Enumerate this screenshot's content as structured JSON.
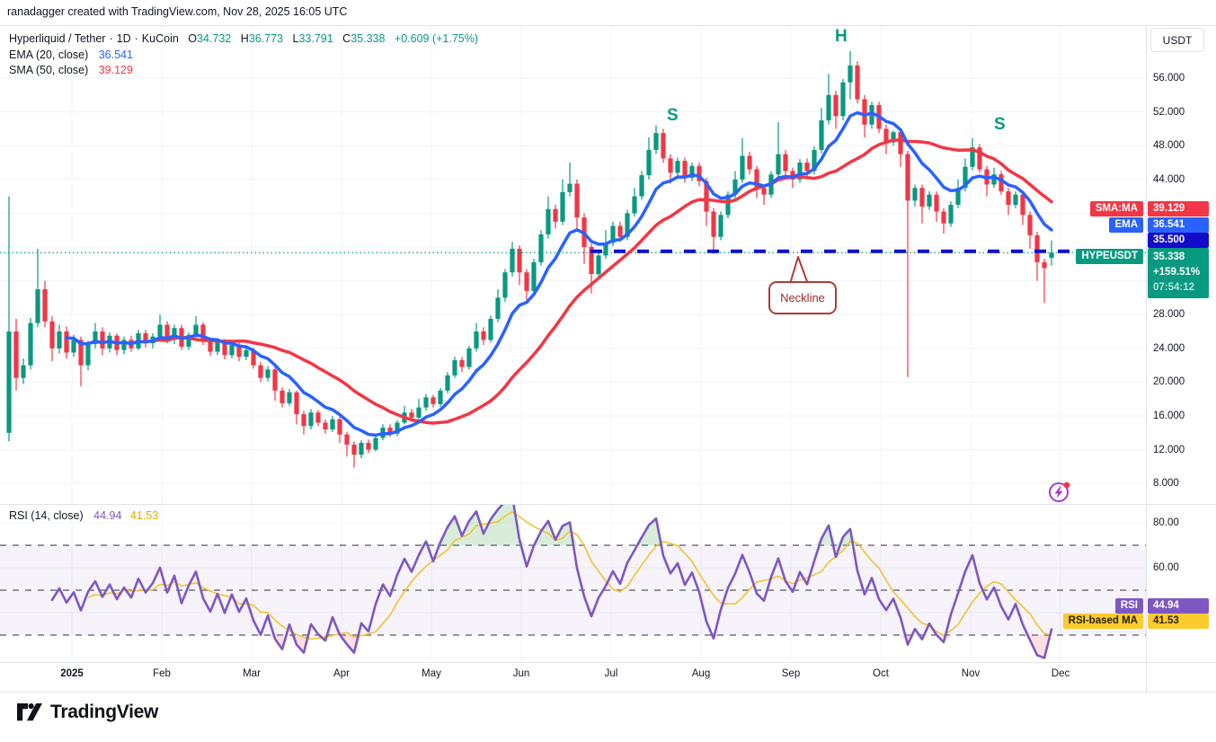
{
  "attribution": "ranadagger created with TradingView.com, Nov 28, 2025 16:05 UTC",
  "legend": {
    "symbol": "Hyperliquid / Tether",
    "sep": "·",
    "timeframe": "1D",
    "exchange": "KuCoin",
    "ohlc": {
      "o_label": "O",
      "open": "34.732",
      "h_label": "H",
      "high": "36.773",
      "l_label": "L",
      "low": "33.791",
      "c_label": "C",
      "close": "35.338",
      "change": "+0.609 (+1.75%)"
    },
    "ema_label": "EMA (20, close)",
    "ema_value": "36.541",
    "sma_label": "SMA (50, close)",
    "sma_value": "39.129"
  },
  "rsi_legend": {
    "label": "RSI (14, close)",
    "rsi_value": "44.94",
    "ma_value": "41.53"
  },
  "price_axis": {
    "currency": "USDT",
    "ticks": [
      {
        "label": "56.000",
        "price": 56
      },
      {
        "label": "52.000",
        "price": 52
      },
      {
        "label": "48.000",
        "price": 48
      },
      {
        "label": "44.000",
        "price": 44
      },
      {
        "label": "28.000",
        "price": 28
      },
      {
        "label": "24.000",
        "price": 24
      },
      {
        "label": "20.000",
        "price": 20
      },
      {
        "label": "16.000",
        "price": 16
      },
      {
        "label": "12.000",
        "price": 12
      },
      {
        "label": "8.000",
        "price": 8
      }
    ]
  },
  "axis_badges": {
    "sma_label": "SMA:MA",
    "sma_value": "39.129",
    "ema_label": "EMA",
    "ema_value": "36.541",
    "neckline_value": "35.500",
    "symbol_label": "HYPEUSDT",
    "last_price": "35.338",
    "change_pct": "+159.51%",
    "countdown": "07:54:12"
  },
  "rsi_axis": {
    "ticks": [
      {
        "label": "80.00",
        "value": 80
      },
      {
        "label": "60.00",
        "value": 60
      }
    ],
    "rsi_label": "RSI",
    "rsi_value": "44.94",
    "ma_label": "RSI-based MA",
    "ma_value": "41.53"
  },
  "annotations": {
    "left_shoulder": "S",
    "head": "H",
    "right_shoulder": "S",
    "neckline_label": "Neckline"
  },
  "time_axis": {
    "labels": [
      "2025",
      "Feb",
      "Mar",
      "Apr",
      "May",
      "Jun",
      "Jul",
      "Aug",
      "Sep",
      "Oct",
      "Nov",
      "Dec"
    ]
  },
  "footer": {
    "logo_text": "TradingView"
  },
  "colors": {
    "up": "#089981",
    "down": "#f23645",
    "ema": "#2962ff",
    "sma": "#f23645",
    "neckline": "#1010cf",
    "current_price": "#089981",
    "rsi_line": "#7e57c2",
    "rsi_ma_line": "#f2c230",
    "grid": "#f0f3fa",
    "band_fill": "rgba(126,87,194,0.07)",
    "overbought_fill": "rgba(76,175,80,0.22)",
    "oversold_fill": "rgba(255,82,82,0.18)",
    "level_dash": "#70737e"
  },
  "chart_data": {
    "type": "candlestick",
    "symbol": "HYPEUSDT",
    "exchange": "KuCoin",
    "timeframe": "1D",
    "x_range": "Jan 2025 - Dec 2025",
    "price_ylim": [
      6.5,
      59.5
    ],
    "grid_prices": [
      8,
      12,
      16,
      20,
      24,
      28,
      32,
      36,
      40,
      44,
      48,
      52,
      56
    ],
    "last_bar": {
      "open": 34.732,
      "high": 36.773,
      "low": 33.791,
      "close": 35.338,
      "change": 0.609,
      "change_pct": 1.75
    },
    "overlays": [
      {
        "name": "EMA",
        "period": 20,
        "last": 36.541
      },
      {
        "name": "SMA",
        "period": 50,
        "last": 39.129
      }
    ],
    "hlines": [
      {
        "price": 35.5,
        "style": "dashed",
        "role": "neckline"
      },
      {
        "price": 35.338,
        "style": "dotted",
        "role": "current-price"
      }
    ],
    "pattern_points": [
      {
        "label": "S",
        "price": 50.4,
        "when": "late Jul"
      },
      {
        "label": "H",
        "price": 59.2,
        "when": "mid Sep"
      },
      {
        "label": "S",
        "price": 48.9,
        "when": "early Nov"
      }
    ],
    "candles_note": "OHLC values estimated from the chart, ~2.3-day resolution, Jan through Nov 28 2025",
    "candles": [
      [
        14,
        42,
        13,
        26
      ],
      [
        26,
        27.5,
        19,
        20.5
      ],
      [
        20.5,
        22.8,
        19.8,
        22
      ],
      [
        22,
        27.6,
        21.5,
        27
      ],
      [
        27,
        35.8,
        26.5,
        31
      ],
      [
        31,
        32,
        26.5,
        27.2
      ],
      [
        27.2,
        27.8,
        22.5,
        24
      ],
      [
        24,
        26.8,
        23.4,
        26
      ],
      [
        26,
        26.6,
        22.8,
        23.5
      ],
      [
        23.5,
        25.6,
        23,
        25
      ],
      [
        25,
        25.4,
        19.5,
        22
      ],
      [
        22,
        24.9,
        21.4,
        24.5
      ],
      [
        24.5,
        27,
        24,
        26
      ],
      [
        26,
        26.5,
        23.2,
        24
      ],
      [
        24,
        25.9,
        23.5,
        25.5
      ],
      [
        25.5,
        25.8,
        23.2,
        23.8
      ],
      [
        23.8,
        25.4,
        23.3,
        25
      ],
      [
        25,
        25.5,
        23.6,
        24
      ],
      [
        24,
        26.2,
        23.8,
        25.8
      ],
      [
        25.8,
        26.2,
        24.1,
        24.6
      ],
      [
        24.6,
        25.8,
        24,
        25.4
      ],
      [
        25.4,
        28,
        25,
        26.8
      ],
      [
        26.8,
        27.2,
        24.6,
        25
      ],
      [
        25,
        26.8,
        24.5,
        26.4
      ],
      [
        26.4,
        26.8,
        23.8,
        24.2
      ],
      [
        24.2,
        25.9,
        23.8,
        25.6
      ],
      [
        25.6,
        27.8,
        25.2,
        26.8
      ],
      [
        26.8,
        27.1,
        24.4,
        24.8
      ],
      [
        24.8,
        25.3,
        23.1,
        23.6
      ],
      [
        23.6,
        25.2,
        23.2,
        24.8
      ],
      [
        24.8,
        25.1,
        22.7,
        23.2
      ],
      [
        23.2,
        24.8,
        22.8,
        24.4
      ],
      [
        24.4,
        24.8,
        22.5,
        23
      ],
      [
        23,
        24.2,
        22.6,
        23.8
      ],
      [
        23.8,
        24.1,
        21.6,
        22
      ],
      [
        22,
        22.4,
        20,
        20.5
      ],
      [
        20.5,
        21.9,
        20.1,
        21.5
      ],
      [
        21.5,
        21.8,
        17.8,
        19
      ],
      [
        19,
        19.4,
        17,
        17.5
      ],
      [
        17.5,
        19.2,
        17.2,
        18.8
      ],
      [
        18.8,
        19,
        15,
        16.2
      ],
      [
        16.2,
        16.6,
        13.8,
        14.8
      ],
      [
        14.8,
        16.8,
        14.4,
        16.4
      ],
      [
        16.4,
        16.7,
        14.8,
        15.2
      ],
      [
        15.2,
        15.6,
        13.9,
        14.4
      ],
      [
        14.4,
        16,
        14.1,
        15.6
      ],
      [
        15.6,
        15.9,
        12.8,
        13.8
      ],
      [
        13.8,
        14.1,
        11.2,
        12.6
      ],
      [
        12.6,
        13,
        9.9,
        11.4
      ],
      [
        11.4,
        13.1,
        11,
        12.8
      ],
      [
        12.8,
        13.2,
        11.6,
        12
      ],
      [
        12,
        13.7,
        11.8,
        13.4
      ],
      [
        13.4,
        15,
        13.1,
        14.6
      ],
      [
        14.6,
        15,
        13.5,
        13.9
      ],
      [
        13.9,
        15.5,
        13.6,
        15.2
      ],
      [
        15.2,
        17.2,
        15,
        16.4
      ],
      [
        16.4,
        16.8,
        15.3,
        15.8
      ],
      [
        15.8,
        18,
        15.5,
        17
      ],
      [
        17,
        18.6,
        16.6,
        18.2
      ],
      [
        18.2,
        18.5,
        17,
        17.4
      ],
      [
        17.4,
        19.3,
        17.1,
        19
      ],
      [
        19,
        21.2,
        18.7,
        20.8
      ],
      [
        20.8,
        23,
        20.5,
        22.6
      ],
      [
        22.6,
        23,
        21.2,
        21.8
      ],
      [
        21.8,
        24.3,
        21.5,
        24
      ],
      [
        24,
        27,
        23.6,
        26
      ],
      [
        26,
        26.5,
        24.4,
        25
      ],
      [
        25,
        27.9,
        24.7,
        27.5
      ],
      [
        27.5,
        31,
        27.1,
        30
      ],
      [
        30,
        33.4,
        29.5,
        33
      ],
      [
        33,
        36.6,
        32.5,
        35.8
      ],
      [
        35.8,
        36.2,
        31.5,
        33
      ],
      [
        33,
        33.4,
        29.5,
        30.8
      ],
      [
        30.8,
        34.6,
        30.4,
        34.2
      ],
      [
        34.2,
        38,
        33.8,
        37.5
      ],
      [
        37.5,
        42,
        37,
        40.5
      ],
      [
        40.5,
        41,
        38.2,
        39
      ],
      [
        39,
        44,
        38.6,
        42.5
      ],
      [
        42.5,
        46,
        42,
        43.5
      ],
      [
        43.5,
        44,
        38,
        39.5
      ],
      [
        39.5,
        40,
        34,
        36
      ],
      [
        36,
        36.4,
        30.5,
        32.8
      ],
      [
        32.8,
        35.4,
        32.2,
        35
      ],
      [
        35,
        38,
        34.6,
        36.5
      ],
      [
        36.5,
        39,
        36.1,
        38.5
      ],
      [
        38.5,
        39,
        36.6,
        37.2
      ],
      [
        37.2,
        40.4,
        36.8,
        40
      ],
      [
        40,
        43,
        39.6,
        42
      ],
      [
        42,
        45,
        41.6,
        44.5
      ],
      [
        44.5,
        49,
        44,
        47.5
      ],
      [
        47.5,
        50.4,
        47,
        49.5
      ],
      [
        49.5,
        50,
        46,
        46.5
      ],
      [
        46.5,
        47,
        43.5,
        44.8
      ],
      [
        44.8,
        46.6,
        44.2,
        46.2
      ],
      [
        46.2,
        46.6,
        43.6,
        44.2
      ],
      [
        44.2,
        46,
        43.8,
        45.6
      ],
      [
        45.6,
        46,
        43.2,
        43.8
      ],
      [
        43.8,
        44.2,
        38.5,
        40.2
      ],
      [
        40.2,
        40.6,
        35.2,
        37.2
      ],
      [
        37.2,
        40.2,
        36.8,
        39.8
      ],
      [
        39.8,
        42.6,
        39.4,
        42.2
      ],
      [
        42.2,
        45,
        41.8,
        44
      ],
      [
        44,
        48.9,
        43.6,
        46.8
      ],
      [
        46.8,
        47.3,
        44.6,
        45.2
      ],
      [
        45.2,
        45.6,
        41.8,
        43
      ],
      [
        43,
        43.4,
        41,
        42.2
      ],
      [
        42.2,
        45,
        41.8,
        44.6
      ],
      [
        44.6,
        50.8,
        44.2,
        47
      ],
      [
        47,
        47.5,
        44.4,
        45
      ],
      [
        45,
        45.4,
        43,
        44
      ],
      [
        44,
        46.4,
        43.6,
        46
      ],
      [
        46,
        46.5,
        44.4,
        45
      ],
      [
        45,
        47.9,
        44.6,
        47.5
      ],
      [
        47.5,
        52.5,
        47.1,
        51
      ],
      [
        51,
        56.5,
        50.5,
        54
      ],
      [
        54,
        54.5,
        50,
        51.5
      ],
      [
        51.5,
        55.9,
        51,
        55.5
      ],
      [
        55.5,
        59.2,
        53.5,
        57.5
      ],
      [
        57.5,
        58,
        53,
        53.5
      ],
      [
        53.5,
        54,
        49,
        50.5
      ],
      [
        50.5,
        53.2,
        50,
        52.8
      ],
      [
        52.8,
        53.2,
        49.5,
        50
      ],
      [
        50,
        50.5,
        47,
        48.4
      ],
      [
        48.4,
        49.8,
        48,
        49.6
      ],
      [
        49.6,
        50,
        45.5,
        47
      ],
      [
        47,
        47.4,
        20.6,
        41.5
      ],
      [
        41.5,
        43.4,
        40.8,
        43
      ],
      [
        43,
        43.4,
        38.8,
        40.8
      ],
      [
        40.8,
        42.6,
        40.4,
        42.2
      ],
      [
        42.2,
        42.6,
        39,
        40.2
      ],
      [
        40.2,
        40.6,
        37.6,
        38.8
      ],
      [
        38.8,
        41.4,
        38.4,
        41
      ],
      [
        41,
        44,
        40.6,
        43
      ],
      [
        43,
        46.5,
        42.6,
        45.5
      ],
      [
        45.5,
        48.9,
        45.1,
        47.8
      ],
      [
        47.8,
        48.2,
        44.8,
        45.2
      ],
      [
        45.2,
        45.6,
        42,
        43.4
      ],
      [
        43.4,
        45.4,
        43,
        44.6
      ],
      [
        44.6,
        45,
        42.2,
        42.6
      ],
      [
        42.6,
        43,
        39.8,
        41
      ],
      [
        41,
        42.6,
        40.6,
        42.2
      ],
      [
        42.2,
        42.6,
        38.6,
        39.8
      ],
      [
        39.8,
        40.2,
        35.8,
        37.4
      ],
      [
        37.4,
        37.8,
        32,
        34.2
      ],
      [
        34.2,
        34.6,
        29.4,
        33.5
      ],
      [
        34.73,
        36.77,
        33.79,
        35.34
      ]
    ],
    "rsi": {
      "period": 14,
      "last": 44.94,
      "ma_last": 41.53,
      "levels": [
        70,
        50,
        30
      ],
      "ylim": [
        10,
        90
      ],
      "grid_values": [
        80,
        60,
        40,
        20
      ]
    }
  }
}
